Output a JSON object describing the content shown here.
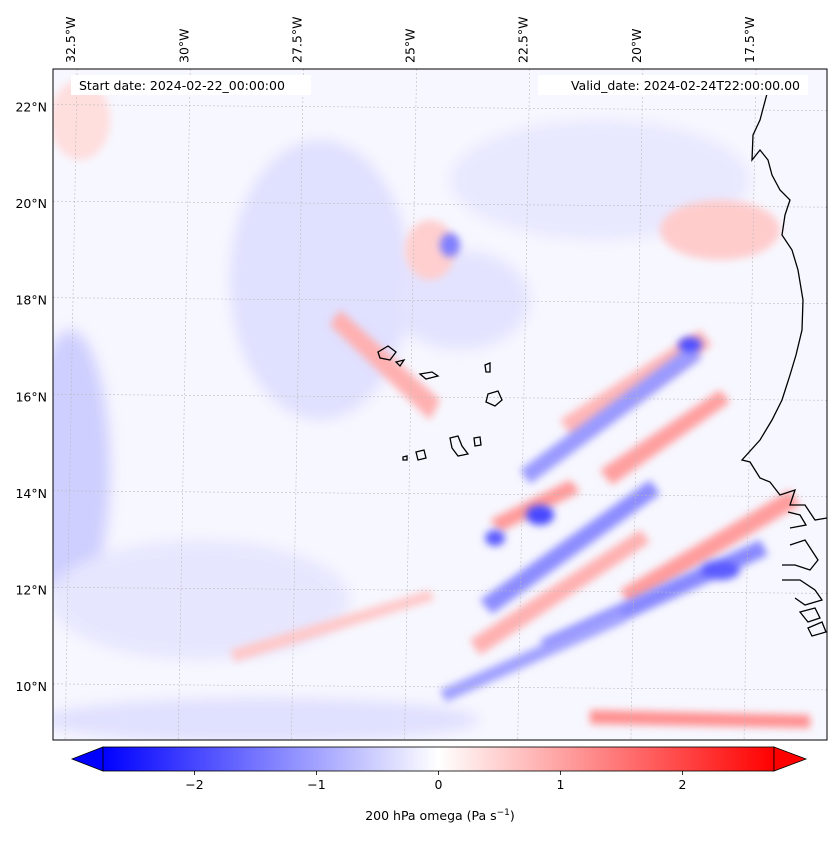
{
  "header": {
    "start_date": "Start date: 2024-02-22_00:00:00",
    "valid_date": "Valid_date: 2024-02-24T22:00:00.00"
  },
  "map": {
    "lon_range": [
      -32.9,
      -15.8
    ],
    "lat_range": [
      8.9,
      22.8
    ],
    "lon_labels": [
      {
        "lon": -32.5,
        "label": "32.5°W"
      },
      {
        "lon": -30.0,
        "label": "30°W"
      },
      {
        "lon": -27.5,
        "label": "27.5°W"
      },
      {
        "lon": -25.0,
        "label": "25°W"
      },
      {
        "lon": -22.5,
        "label": "22.5°W"
      },
      {
        "lon": -20.0,
        "label": "20°W"
      },
      {
        "lon": -17.5,
        "label": "17.5°W"
      }
    ],
    "lat_labels": [
      {
        "lat": 22,
        "label": "22°N"
      },
      {
        "lat": 20,
        "label": "20°N"
      },
      {
        "lat": 18,
        "label": "18°N"
      },
      {
        "lat": 16,
        "label": "16°N"
      },
      {
        "lat": 14,
        "label": "14°N"
      },
      {
        "lat": 12,
        "label": "12°N"
      },
      {
        "lat": 10,
        "label": "10°N"
      }
    ],
    "colors": {
      "negative": "#0000ff",
      "positive": "#ff0000",
      "neutral": "#ffffff",
      "coast": "#000000"
    }
  },
  "colorbar": {
    "label_prefix": "200 hPa omega (Pa s",
    "label_exp": "−1",
    "label_suffix": ")",
    "vmin": -2.75,
    "vmax": 2.75,
    "ticks": [
      {
        "value": -2,
        "label": "−2"
      },
      {
        "value": -1,
        "label": "−1"
      },
      {
        "value": 0,
        "label": "0"
      },
      {
        "value": 1,
        "label": "1"
      },
      {
        "value": 2,
        "label": "2"
      }
    ]
  }
}
